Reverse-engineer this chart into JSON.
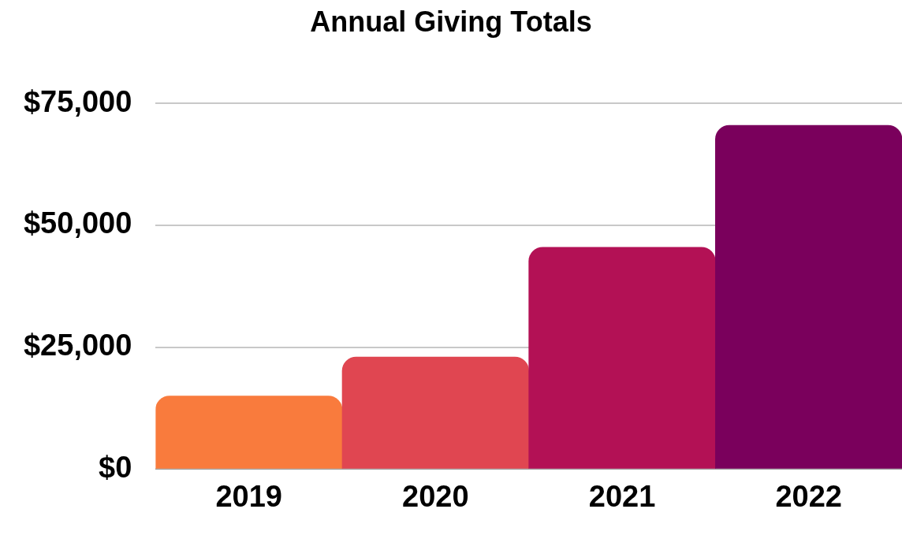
{
  "chart_data": {
    "type": "bar",
    "title": "Annual Giving Totals",
    "categories": [
      "2019",
      "2020",
      "2021",
      "2022"
    ],
    "values": [
      15000,
      23000,
      45500,
      70500
    ],
    "colors": [
      "#f97b3d",
      "#e04651",
      "#b31155",
      "#7a005c"
    ],
    "ylim": [
      0,
      75000
    ],
    "yticks": [
      {
        "value": 0,
        "label": "$0"
      },
      {
        "value": 25000,
        "label": "$25,000"
      },
      {
        "value": 50000,
        "label": "$50,000"
      },
      {
        "value": 75000,
        "label": "$75,000"
      }
    ],
    "grid": "y",
    "legend": false
  }
}
